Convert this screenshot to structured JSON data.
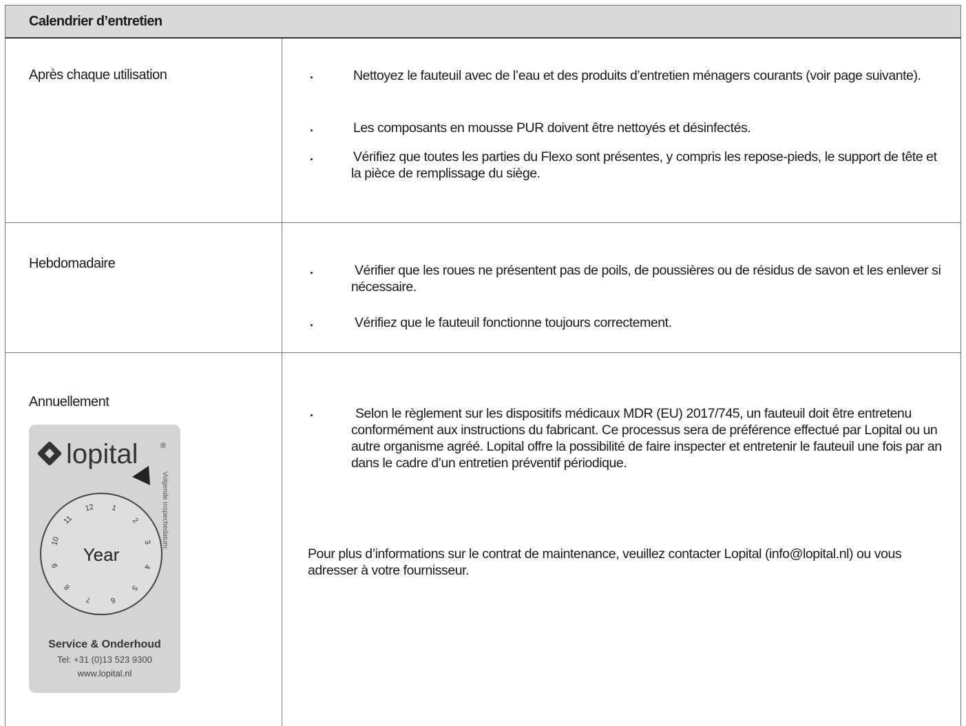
{
  "table": {
    "title": "Calendrier d’entretien",
    "rows": [
      {
        "label": "Après chaque utilisation",
        "items": [
          "Nettoyez le fauteuil avec de l’eau et des produits d’entretien ménagers courants (voir page suivante).",
          "Les composants en mousse PUR doivent être nettoyés et désinfectés.",
          "Vérifiez que toutes les parties du Flexo sont présentes, y compris les repose-pieds, le support de tête et la pièce de remplissage du siège."
        ]
      },
      {
        "label": "Hebdomadaire",
        "items": [
          "Vérifier que les roues ne présentent pas de poils, de poussières ou de résidus de savon et les enlever si nécessaire.",
          "Vérifiez que le fauteuil fonctionne toujours correctement."
        ]
      },
      {
        "label": "Annuellement",
        "items": [
          "Selon le règlement sur les dispositifs médicaux MDR (EU) 2017/745, un fauteuil doit être entretenu conformément aux instructions du fabricant. Ce processus sera de préférence effectué par Lopital ou un autre organisme agréé. Lopital offre la possibilité de faire inspecter et entretenir le fauteuil une fois par an dans le cadre d’un entretien préventif périodique."
        ],
        "note": "Pour plus d’informations sur le contrat de maintenance, veuillez contacter Lopital (info@lopital.nl) ou vous adresser à votre fournisseur."
      }
    ]
  },
  "sticker": {
    "brand": "lopital",
    "mark": "®",
    "clock_label": "Year",
    "clock_numbers": [
      "1",
      "2",
      "3",
      "4",
      "5",
      "6",
      "7",
      "8",
      "9",
      "10",
      "11",
      "12"
    ],
    "side_text": "Volgende inspectiedatum:",
    "service": "Service & Onderhoud",
    "phone": "Tel: +31 (0)13 523 9300",
    "website": "www.lopital.nl"
  }
}
